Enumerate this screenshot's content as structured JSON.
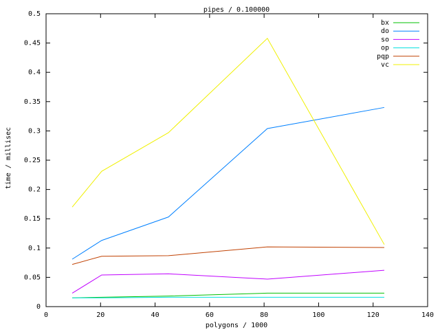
{
  "chart_data": {
    "type": "line",
    "title": "pipes / 0.100000",
    "x_label": "polygons / 1000",
    "y_label": "time / millisec",
    "x": [
      9.6,
      20.4,
      44.9,
      81.2,
      124.1
    ],
    "series": [
      {
        "name": "bx",
        "color": "#00c000",
        "values": [
          0.015,
          0.016,
          0.018,
          0.023,
          0.023
        ]
      },
      {
        "name": "do",
        "color": "#0080ff",
        "values": [
          0.081,
          0.113,
          0.153,
          0.304,
          0.34
        ]
      },
      {
        "name": "so",
        "color": "#c000ff",
        "values": [
          0.023,
          0.054,
          0.056,
          0.047,
          0.062
        ]
      },
      {
        "name": "op",
        "color": "#00e0e0",
        "values": [
          0.015,
          0.015,
          0.016,
          0.016,
          0.016
        ]
      },
      {
        "name": "pqp",
        "color": "#c04000",
        "values": [
          0.072,
          0.086,
          0.087,
          0.102,
          0.101
        ]
      },
      {
        "name": "vc",
        "color": "#f0f000",
        "values": [
          0.17,
          0.231,
          0.297,
          0.458,
          0.106
        ]
      }
    ],
    "xlim": [
      0,
      140
    ],
    "xticks": [
      0,
      20,
      40,
      60,
      80,
      100,
      120,
      140
    ],
    "ylim": [
      0,
      0.5
    ],
    "yticks": [
      0,
      0.05,
      0.1,
      0.15,
      0.2,
      0.25,
      0.3,
      0.35,
      0.4,
      0.45,
      0.5
    ],
    "grid": false,
    "legend": "top-right"
  }
}
